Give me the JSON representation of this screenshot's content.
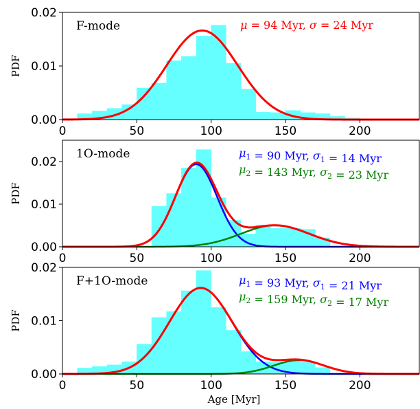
{
  "chart_data": [
    {
      "type": "bar",
      "panel_label": "F-mode",
      "ylabel": "PDF",
      "xlim": [
        0,
        240
      ],
      "ylim": [
        0,
        0.02
      ],
      "yticks": [
        "0.00",
        "0.01",
        "0.02"
      ],
      "xticks": [
        "0",
        "50",
        "100",
        "150",
        "200"
      ],
      "bin_edges": [
        10,
        20,
        30,
        40,
        50,
        60,
        70,
        80,
        90,
        100,
        110,
        120,
        130,
        140,
        150,
        160,
        170,
        180,
        190,
        200
      ],
      "values": [
        0.0011,
        0.0016,
        0.0021,
        0.0028,
        0.0059,
        0.0068,
        0.011,
        0.0118,
        0.0156,
        0.0176,
        0.0105,
        0.0057,
        0.0014,
        0.0013,
        0.0017,
        0.0013,
        0.0011,
        0.0006,
        0.0003
      ],
      "series": [
        {
          "name": "",
          "mu": 94,
          "sigma": 24,
          "weight": 1,
          "color": "#ff0000"
        }
      ],
      "annotations": [
        {
          "text": "μ = 94 Myr, σ = 24 Myr",
          "color": "#ff0000"
        }
      ],
      "hist_color": "#66ffff",
      "fit_color": "#ff0000"
    },
    {
      "type": "bar",
      "panel_label": "1O-mode",
      "ylabel": "PDF",
      "xlim": [
        0,
        240
      ],
      "ylim": [
        0,
        0.025
      ],
      "yticks": [
        "0.00",
        "0.01",
        "0.02"
      ],
      "xticks": [
        "0",
        "50",
        "100",
        "150",
        "200"
      ],
      "bin_edges": [
        60,
        70,
        80,
        90,
        100,
        110,
        120,
        130,
        140,
        150,
        160,
        170,
        180
      ],
      "values": [
        0.0095,
        0.0125,
        0.0185,
        0.0228,
        0.0115,
        0.0062,
        0.003,
        0.0051,
        0.0043,
        0.0043,
        0.0041,
        0.0021
      ],
      "series": [
        {
          "name": "",
          "mu": 90,
          "sigma": 14,
          "weight": 0.68,
          "color": "#0000ff"
        },
        {
          "name": "",
          "mu": 143,
          "sigma": 23,
          "weight": 0.29,
          "color": "#008000"
        }
      ],
      "annotations": [
        {
          "text": "μ1 = 90 Myr, σ1 = 14 Myr",
          "color": "#0000ff"
        },
        {
          "text": "μ2 = 143 Myr, σ2 = 23 Myr",
          "color": "#008000"
        }
      ],
      "hist_color": "#66ffff",
      "fit_color": "#ff0000"
    },
    {
      "type": "bar",
      "panel_label": "F+1O-mode",
      "ylabel": "PDF",
      "xlabel": "Age [Myr]",
      "xlim": [
        0,
        240
      ],
      "ylim": [
        0,
        0.02
      ],
      "yticks": [
        "0.00",
        "0.01",
        "0.02"
      ],
      "xticks": [
        "0",
        "50",
        "100",
        "150",
        "200"
      ],
      "bin_edges": [
        10,
        20,
        30,
        40,
        50,
        60,
        70,
        80,
        90,
        100,
        110,
        120,
        130,
        140,
        150,
        160,
        170,
        180
      ],
      "values": [
        0.0011,
        0.0014,
        0.0017,
        0.0023,
        0.0056,
        0.0106,
        0.0117,
        0.0156,
        0.0194,
        0.0125,
        0.0082,
        0.0042,
        0.0023,
        0.0022,
        0.0026,
        0.0022,
        0.0012
      ],
      "series": [
        {
          "name": "",
          "mu": 93,
          "sigma": 21,
          "weight": 0.85,
          "color": "#0000ff"
        },
        {
          "name": "",
          "mu": 159,
          "sigma": 17,
          "weight": 0.11,
          "color": "#008000"
        }
      ],
      "annotations": [
        {
          "text": "μ1 = 93 Myr, σ1 = 21 Myr",
          "color": "#0000ff"
        },
        {
          "text": "μ2 = 159 Myr, σ2 = 17 Myr",
          "color": "#008000"
        }
      ],
      "hist_color": "#66ffff",
      "fit_color": "#ff0000"
    }
  ]
}
